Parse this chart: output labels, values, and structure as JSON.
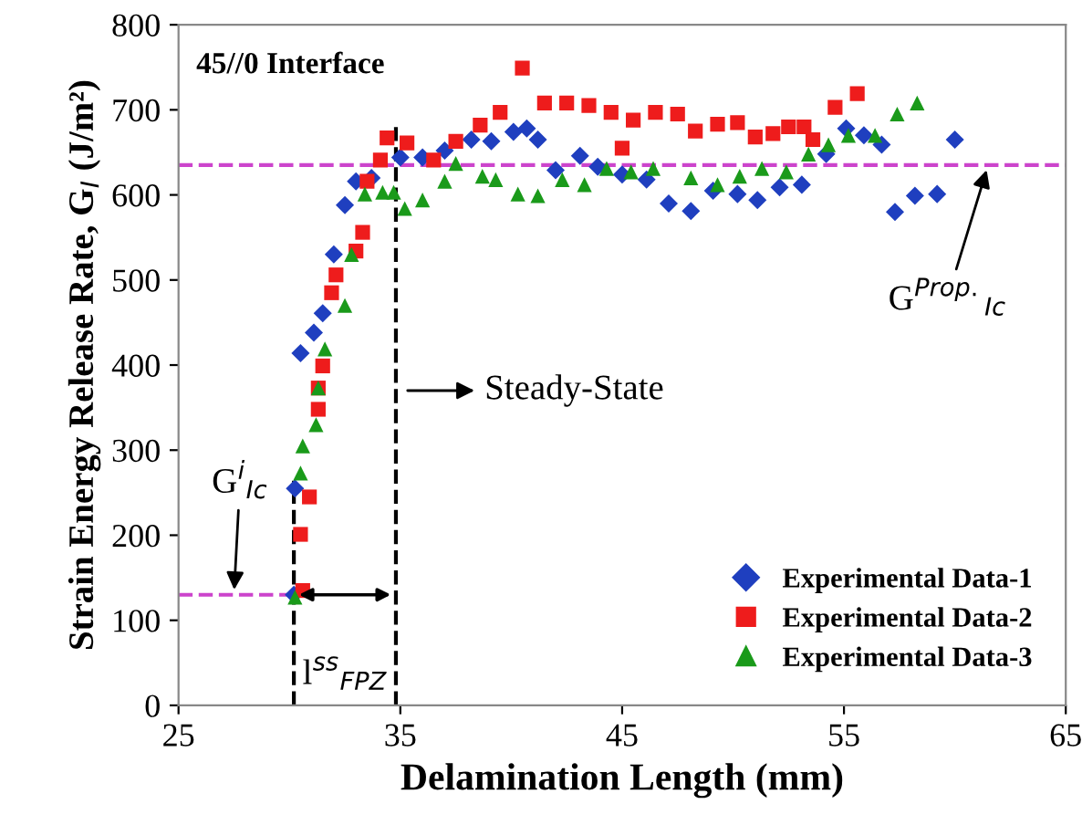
{
  "chart_data": {
    "type": "scatter",
    "xlabel": "Delamination Length (mm)",
    "ylabel": "Strain Energy Release Rate, G$_{I}$ (J/m²)",
    "xlim": [
      25,
      65
    ],
    "xticks": [
      25,
      35,
      45,
      55,
      65
    ],
    "ylim": [
      0,
      800
    ],
    "yticks": [
      0,
      100,
      200,
      300,
      400,
      500,
      600,
      700,
      800
    ],
    "grid": false,
    "legend": "bottom right",
    "series": [
      {
        "name": "Experimental Data-1",
        "color": "#1f3fbf",
        "marker": "diamond",
        "x": [
          30.2,
          30.25,
          30.5,
          31.1,
          31.5,
          32.0,
          32.5,
          33.0,
          33.7,
          35.0,
          36.0,
          37.0,
          38.2,
          39.1,
          40.1,
          40.7,
          41.2,
          42.0,
          43.1,
          43.9,
          45.0,
          46.1,
          47.1,
          48.1,
          49.1,
          50.2,
          51.1,
          52.1,
          53.1,
          54.2,
          55.1,
          55.9,
          56.7,
          57.3,
          58.2,
          59.2,
          60.0
        ],
        "values": [
          130,
          255,
          414,
          438,
          461,
          530,
          588,
          616,
          620,
          644,
          644,
          652,
          665,
          663,
          674,
          678,
          665,
          629,
          646,
          633,
          624,
          618,
          590,
          581,
          605,
          601,
          594,
          609,
          612,
          648,
          678,
          670,
          659,
          580,
          599,
          601,
          665
        ]
      },
      {
        "name": "Experimental Data-2",
        "color": "#ee1c1c",
        "marker": "square",
        "x": [
          30.6,
          30.5,
          30.9,
          31.3,
          31.3,
          31.5,
          31.9,
          32.1,
          33.0,
          33.3,
          33.5,
          34.1,
          34.4,
          35.3,
          36.5,
          37.5,
          38.6,
          39.5,
          40.5,
          41.5,
          42.5,
          43.5,
          44.5,
          45.0,
          45.5,
          46.5,
          47.5,
          48.3,
          49.3,
          50.2,
          51.0,
          51.8,
          52.5,
          53.2,
          53.6,
          54.6,
          55.6
        ],
        "values": [
          135,
          201,
          245,
          348,
          373,
          399,
          485,
          506,
          534,
          556,
          616,
          641,
          667,
          661,
          641,
          663,
          682,
          697,
          749,
          708,
          708,
          705,
          697,
          655,
          688,
          697,
          695,
          675,
          683,
          685,
          668,
          672,
          680,
          680,
          665,
          703,
          719
        ]
      },
      {
        "name": "Experimental Data-3",
        "color": "#1a9a1a",
        "marker": "triangle",
        "x": [
          30.25,
          30.5,
          30.6,
          31.2,
          31.3,
          31.6,
          32.5,
          32.8,
          33.4,
          34.2,
          34.7,
          35.2,
          36.0,
          37.0,
          37.5,
          38.7,
          39.3,
          40.3,
          41.2,
          42.3,
          43.3,
          44.3,
          45.4,
          46.4,
          48.1,
          49.3,
          50.3,
          51.3,
          52.4,
          53.4,
          54.3,
          55.2,
          56.4,
          57.4,
          58.3
        ],
        "values": [
          127,
          273,
          305,
          330,
          373,
          419,
          470,
          530,
          601,
          603,
          603,
          584,
          594,
          616,
          637,
          622,
          618,
          601,
          599,
          618,
          612,
          631,
          627,
          631,
          620,
          612,
          622,
          631,
          627,
          648,
          659,
          670,
          670,
          695,
          708
        ]
      }
    ],
    "ref_lines": [
      {
        "axis": "y",
        "value": 635,
        "label": "G$^{Prop.}$$_{Ic}$",
        "color": "#cc44cc",
        "line_style": "dashed"
      },
      {
        "axis": "y",
        "value": 130,
        "label": "G$^{i}$$_{Ic}$",
        "color": "#cc44cc",
        "line_style": "dashed"
      },
      {
        "axis": "x",
        "value": 30.2,
        "color": "#000000",
        "line_style": "dashed"
      },
      {
        "axis": "x",
        "value": 34.8,
        "color": "#000000",
        "line_style": "dashed"
      }
    ],
    "annotations": [
      "45//0 Interface",
      "Steady-State",
      "l$^{ss}$$_{FPZ}$"
    ]
  }
}
